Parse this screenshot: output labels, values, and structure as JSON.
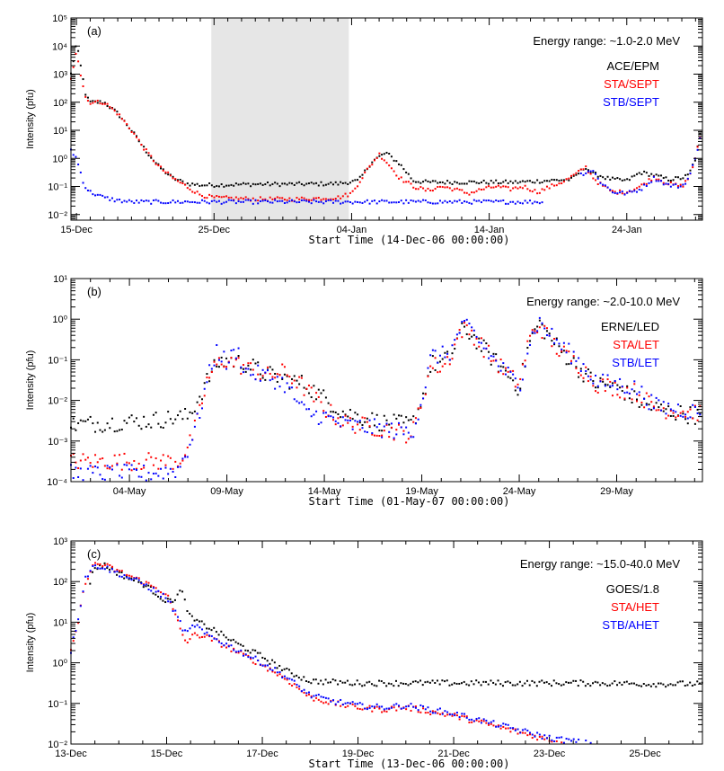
{
  "colors": {
    "black": "#000000",
    "red": "#ff0000",
    "blue": "#0000ff",
    "shade": "#e6e6e6"
  },
  "chart_data": [
    {
      "type": "scatter",
      "panel_label": "(a)",
      "energy_label": "Energy range: ~1.0-2.0 MeV",
      "xlabel": "Start Time (14-Dec-06 00:00:00)",
      "ylabel": "Intensity (pfu)",
      "y_scale": "log",
      "ylim_exp": [
        -2.2,
        5
      ],
      "y_tick_labels": [
        "10⁻²",
        "10⁻¹",
        "10⁰",
        "10¹",
        "10²",
        "10³",
        "10⁴",
        "10⁵"
      ],
      "x_unit": "days since 14-Dec-06",
      "xlim": [
        0.6,
        46.5
      ],
      "x_ticks": [
        1,
        11,
        21,
        31,
        41
      ],
      "x_tick_labels": [
        "15-Dec",
        "25-Dec",
        "04-Jan",
        "14-Jan",
        "24-Jan"
      ],
      "shaded_span": [
        10.8,
        20.8
      ],
      "series": [
        {
          "name": "ACE/EPM",
          "color": "#000000",
          "stop": 46.5,
          "x": [
            0.6,
            1.0,
            1.3,
            1.7,
            2.0,
            3.0,
            4.0,
            5.0,
            6.0,
            7.0,
            8.0,
            9.0,
            10.0,
            11.0,
            14.0,
            17.0,
            20.0,
            21.5,
            22.5,
            23.5,
            24.5,
            25.5,
            26.5,
            27.5,
            29.0,
            31.0,
            33.0,
            35.0,
            37.0,
            38.0,
            38.5,
            39.0,
            39.5,
            40.0,
            41.0,
            42.0,
            43.0,
            44.0,
            45.0,
            45.5,
            46.0,
            46.5
          ],
          "logy": [
            3.0,
            4.1,
            3.3,
            2.2,
            2.0,
            2.0,
            1.6,
            1.0,
            0.3,
            -0.3,
            -0.7,
            -0.9,
            -0.95,
            -0.95,
            -0.92,
            -0.92,
            -0.9,
            -0.8,
            -0.1,
            0.2,
            -0.2,
            -0.8,
            -0.85,
            -0.85,
            -0.85,
            -0.85,
            -0.85,
            -0.8,
            -0.75,
            -0.3,
            -0.55,
            -0.6,
            -0.7,
            -0.75,
            -0.8,
            -0.5,
            -0.6,
            -0.75,
            -0.7,
            -0.6,
            0.0,
            1.3
          ]
        },
        {
          "name": "STA/SEPT",
          "color": "#ff0000",
          "stop": 46.5,
          "x": [
            0.6,
            1.0,
            1.3,
            1.7,
            2.0,
            3.0,
            4.0,
            5.0,
            6.0,
            7.0,
            8.0,
            9.0,
            10.0,
            11.0,
            14.0,
            17.0,
            20.0,
            21.0,
            22.0,
            23.0,
            23.5,
            24.5,
            25.5,
            26.5,
            27.5,
            28.5,
            29.5,
            30.5,
            31.5,
            32.5,
            33.5,
            34.5,
            35.5,
            36.5,
            37.5,
            38.0,
            38.5,
            39.0,
            39.5,
            40.0,
            41.0,
            42.0,
            43.0,
            44.0,
            45.0,
            45.5,
            46.0,
            46.5
          ],
          "logy": [
            2.8,
            3.9,
            3.0,
            2.1,
            2.0,
            2.0,
            1.6,
            1.0,
            0.3,
            -0.3,
            -0.7,
            -1.0,
            -1.3,
            -1.4,
            -1.45,
            -1.45,
            -1.4,
            -1.25,
            -0.5,
            0.15,
            -0.1,
            -0.7,
            -1.0,
            -1.15,
            -1.0,
            -1.1,
            -1.25,
            -1.1,
            -1.0,
            -1.1,
            -1.0,
            -1.2,
            -1.0,
            -0.8,
            -0.5,
            -0.3,
            -0.65,
            -0.9,
            -1.05,
            -1.2,
            -1.2,
            -1.0,
            -0.65,
            -0.9,
            -1.0,
            -0.7,
            0.0,
            1.2
          ]
        },
        {
          "name": "STB/SEPT",
          "color": "#0000ff",
          "stop": 46.5,
          "x": [
            0.6,
            1.0,
            1.3,
            1.6,
            2.0,
            3.0,
            4.0,
            5.0,
            6.0,
            8.0,
            10.0,
            14.0,
            18.0,
            22.0,
            26.0,
            30.0,
            33.0,
            35.0,
            36.0,
            37.5,
            38.5,
            39.0,
            39.5,
            40.0,
            41.0,
            42.0,
            43.0,
            44.0,
            45.0,
            45.5,
            46.0,
            46.5
          ],
          "logy": [
            0.3,
            0.0,
            -0.5,
            -1.0,
            -1.2,
            -1.4,
            -1.5,
            -1.55,
            -1.55,
            -1.55,
            -1.55,
            -1.55,
            -1.55,
            -1.55,
            -1.55,
            -1.55,
            -1.55,
            -1.55,
            null,
            -0.6,
            -0.4,
            -0.8,
            -1.0,
            -1.2,
            -1.25,
            -1.1,
            -0.7,
            -0.95,
            -1.0,
            -0.7,
            0.0,
            1.2
          ]
        }
      ],
      "legend": [
        "ACE/EPM",
        "STA/SEPT",
        "STB/SEPT"
      ]
    },
    {
      "type": "scatter",
      "panel_label": "(b)",
      "energy_label": "Energy range: ~2.0-10.0 MeV",
      "xlabel": "Start Time (01-May-07 00:00:00)",
      "ylabel": "Intensity (pfu)",
      "y_scale": "log",
      "ylim_exp": [
        -4,
        1
      ],
      "y_tick_labels": [
        "10⁻⁴",
        "10⁻³",
        "10⁻²",
        "10⁻¹",
        "10⁰",
        "10¹"
      ],
      "x_unit": "days since 01-May-07",
      "xlim": [
        0,
        32.4
      ],
      "x_ticks": [
        3,
        8,
        13,
        18,
        23,
        28
      ],
      "x_tick_labels": [
        "04-May",
        "09-May",
        "14-May",
        "19-May",
        "24-May",
        "29-May"
      ],
      "series": [
        {
          "name": "ERNE/LED",
          "color": "#000000",
          "stop": 32.4,
          "x": [
            0.0,
            2.0,
            4.0,
            6.0,
            6.5,
            7.0,
            7.5,
            8.0,
            9.0,
            10.0,
            12.0,
            14.0,
            16.0,
            17.5,
            18.0,
            18.5,
            19.0,
            19.5,
            20.0,
            20.5,
            21.5,
            22.5,
            23.0,
            23.5,
            24.0,
            25.0,
            26.0,
            27.0,
            28.0,
            29.0,
            30.0,
            31.0,
            32.4
          ],
          "logy": [
            -2.6,
            -2.55,
            -2.5,
            -2.4,
            -2.0,
            -1.5,
            -1.1,
            -1.0,
            -1.1,
            -1.35,
            -1.6,
            -2.3,
            -2.55,
            -2.6,
            -2.0,
            -1.1,
            -1.1,
            -0.9,
            -0.3,
            -0.35,
            -0.9,
            -1.4,
            -1.7,
            -0.6,
            -0.1,
            -0.7,
            -1.2,
            -1.6,
            -1.65,
            -2.0,
            -2.2,
            -2.3,
            -2.4
          ]
        },
        {
          "name": "STA/LET",
          "color": "#ff0000",
          "stop": 32.4,
          "x": [
            0.0,
            2.0,
            4.0,
            5.5,
            6.0,
            6.5,
            7.0,
            7.5,
            8.0,
            9.0,
            10.0,
            11.0,
            12.0,
            13.0,
            14.0,
            16.0,
            17.5,
            18.0,
            18.5,
            19.0,
            19.5,
            20.0,
            20.5,
            21.5,
            22.5,
            23.0,
            23.5,
            24.0,
            25.0,
            26.0,
            27.0,
            28.0,
            29.0,
            30.0,
            31.0,
            32.4
          ],
          "logy": [
            -3.5,
            -3.5,
            -3.5,
            -3.5,
            -3.2,
            -2.5,
            -1.5,
            -1.1,
            -1.0,
            -1.2,
            -1.4,
            -1.3,
            -1.7,
            -2.2,
            -2.55,
            -2.7,
            -2.85,
            -2.0,
            -1.1,
            -1.2,
            -0.9,
            -0.25,
            -0.3,
            -0.9,
            -1.4,
            -1.6,
            -0.5,
            -0.15,
            -0.75,
            -1.1,
            -1.6,
            -1.7,
            -1.8,
            -2.2,
            -2.25,
            -2.3
          ]
        },
        {
          "name": "STB/LET",
          "color": "#0000ff",
          "stop": 32.4,
          "x": [
            0.0,
            2.0,
            4.0,
            5.5,
            6.0,
            6.5,
            7.0,
            7.5,
            8.0,
            8.5,
            9.0,
            10.0,
            11.0,
            12.0,
            13.0,
            14.0,
            16.0,
            17.5,
            18.0,
            18.5,
            19.0,
            19.5,
            20.0,
            20.5,
            21.5,
            22.5,
            23.0,
            23.5,
            24.0,
            25.0,
            26.0,
            27.0,
            28.0,
            29.0,
            30.0,
            31.0,
            32.4
          ],
          "logy": [
            -3.8,
            -3.8,
            -3.8,
            -3.7,
            -3.2,
            -2.5,
            -1.5,
            -0.75,
            -1.1,
            -0.75,
            -1.3,
            -1.4,
            -1.6,
            -2.3,
            -2.4,
            -2.6,
            -2.7,
            -2.8,
            -2.0,
            -0.9,
            -0.9,
            -0.8,
            -0.2,
            -0.25,
            -0.9,
            -1.4,
            -1.65,
            -0.6,
            -0.05,
            -0.6,
            -1.0,
            -1.55,
            -1.6,
            -1.7,
            -2.15,
            -2.2,
            -2.3
          ]
        }
      ],
      "legend": [
        "ERNE/LED",
        "STA/LET",
        "STB/LET"
      ]
    },
    {
      "type": "scatter",
      "panel_label": "(c)",
      "energy_label": "Energy range: ~15.0-40.0 MeV",
      "xlabel": "Start Time (13-Dec-06 00:00:00)",
      "ylabel": "Intensity (pfu)",
      "y_scale": "log",
      "ylim_exp": [
        -2,
        3
      ],
      "y_tick_labels": [
        "10⁻²",
        "10⁻¹",
        "10⁰",
        "10¹",
        "10²",
        "10³"
      ],
      "x_unit": "days since 13-Dec-06",
      "xlim": [
        0,
        13.2
      ],
      "x_ticks": [
        0,
        2,
        4,
        6,
        8,
        10,
        12
      ],
      "x_tick_labels": [
        "13-Dec",
        "15-Dec",
        "17-Dec",
        "19-Dec",
        "21-Dec",
        "23-Dec",
        "25-Dec"
      ],
      "series": [
        {
          "name": "GOES/1.8",
          "color": "#000000",
          "stop": 13.2,
          "x": [
            0.4,
            0.5,
            0.7,
            1.0,
            1.5,
            1.8,
            2.0,
            2.2,
            2.3,
            2.5,
            3.0,
            3.5,
            4.0,
            4.5,
            5.0,
            6.0,
            7.0,
            8.0,
            9.0,
            10.0,
            11.0,
            12.0,
            13.2
          ],
          "logy": [
            2.0,
            2.35,
            2.4,
            2.2,
            1.95,
            1.7,
            1.5,
            1.6,
            1.8,
            1.1,
            0.8,
            0.45,
            0.15,
            -0.2,
            -0.45,
            -0.5,
            -0.5,
            -0.5,
            -0.5,
            -0.5,
            -0.5,
            -0.52,
            -0.52
          ]
        },
        {
          "name": "STA/HET",
          "color": "#ff0000",
          "stop": 10.4,
          "x": [
            0.0,
            0.15,
            0.3,
            0.5,
            0.7,
            1.0,
            1.5,
            2.0,
            2.2,
            2.4,
            2.6,
            2.8,
            3.0,
            3.5,
            4.0,
            4.5,
            5.0,
            5.5,
            6.0,
            6.5,
            7.0,
            8.0,
            9.0,
            10.0,
            10.4
          ],
          "logy": [
            0.25,
            1.0,
            2.0,
            2.45,
            2.4,
            2.25,
            2.0,
            1.7,
            1.1,
            0.5,
            0.7,
            0.65,
            0.55,
            0.25,
            -0.05,
            -0.4,
            -0.85,
            -1.0,
            -1.1,
            -1.15,
            -1.1,
            -1.3,
            -1.6,
            -1.9,
            -2.0
          ]
        },
        {
          "name": "STB/AHET",
          "color": "#0000ff",
          "stop": 10.9,
          "x": [
            0.0,
            0.15,
            0.3,
            0.5,
            0.7,
            1.0,
            1.5,
            2.0,
            2.2,
            2.4,
            2.6,
            2.8,
            3.0,
            3.5,
            4.0,
            4.5,
            5.0,
            5.5,
            6.0,
            6.5,
            7.0,
            8.0,
            9.0,
            10.0,
            10.9
          ],
          "logy": [
            0.3,
            1.1,
            2.1,
            2.4,
            2.35,
            2.2,
            1.95,
            1.6,
            1.2,
            0.7,
            0.95,
            0.7,
            0.6,
            0.3,
            0.0,
            -0.35,
            -0.8,
            -0.95,
            -1.05,
            -1.1,
            -1.05,
            -1.25,
            -1.55,
            -1.85,
            -2.0
          ]
        }
      ],
      "legend": [
        "GOES/1.8",
        "STA/HET",
        "STB/AHET"
      ]
    }
  ]
}
